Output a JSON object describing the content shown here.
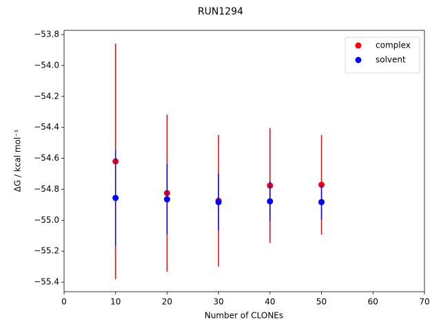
{
  "chart_data": {
    "type": "errorbar-scatter",
    "title": "RUN1294",
    "x_label": "Number of CLONEs",
    "y_label": "ΔG / kcal mol⁻¹",
    "x": [
      10,
      20,
      30,
      40,
      50
    ],
    "series": [
      {
        "name": "complex",
        "color": "#ff0000",
        "values": [
          -54.62,
          -54.825,
          -54.874,
          -54.776,
          -54.771
        ],
        "errors": [
          0.762,
          0.508,
          0.425,
          0.372,
          0.322
        ]
      },
      {
        "name": "solvent",
        "color": "#0000ff",
        "values": [
          -54.856,
          -54.865,
          -54.883,
          -54.878,
          -54.883
        ],
        "errors": [
          0.31,
          0.228,
          0.182,
          0.13,
          0.112
        ]
      }
    ],
    "xlim": [
      0,
      70
    ],
    "xticks": [
      0,
      10,
      20,
      30,
      40,
      50,
      60,
      70
    ],
    "ylim": [
      -55.462,
      -53.773
    ],
    "yticks": [
      {
        "value": -55.4,
        "label": "−55.4"
      },
      {
        "value": -55.2,
        "label": "−55.2"
      },
      {
        "value": -55.0,
        "label": "−55.0"
      },
      {
        "value": -54.8,
        "label": "−54.8"
      },
      {
        "value": -54.6,
        "label": "−54.6"
      },
      {
        "value": -54.4,
        "label": "−54.4"
      },
      {
        "value": -54.2,
        "label": "−54.2"
      },
      {
        "value": -54.0,
        "label": "−54.0"
      },
      {
        "value": -53.8,
        "label": "−53.8"
      }
    ],
    "legend": "upper right"
  }
}
